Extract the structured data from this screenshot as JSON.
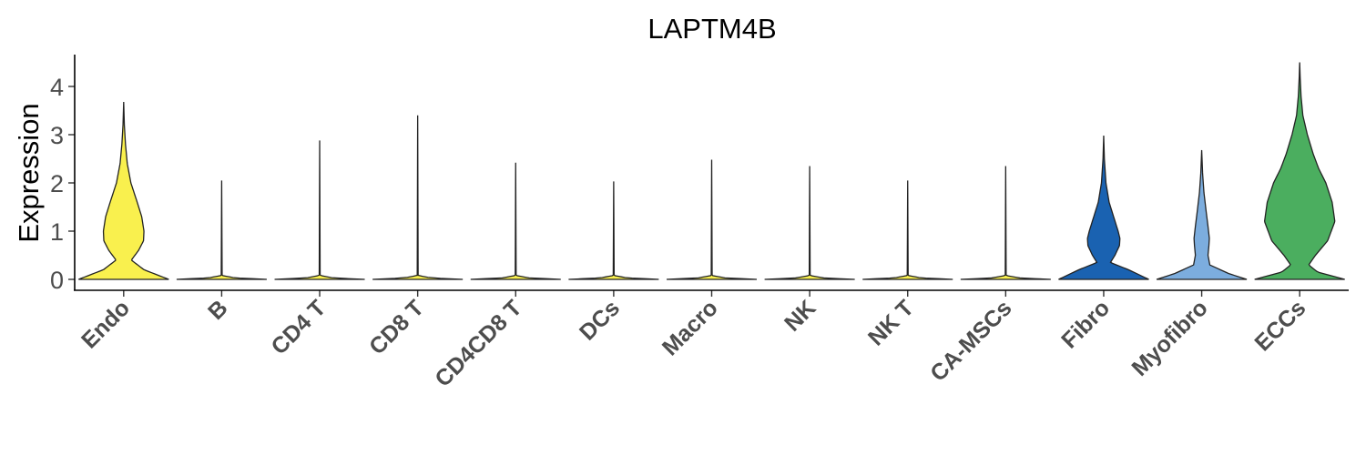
{
  "chart_data": {
    "type": "violin",
    "title": "LAPTM4B",
    "xlabel": "",
    "ylabel": "Expression",
    "ylim": [
      -0.2,
      4.7
    ],
    "yticks": [
      "0",
      "1",
      "2",
      "3",
      "4"
    ],
    "grid": false,
    "legend": "none",
    "categories": [
      "Endo",
      "B",
      "CD4 T",
      "CD8 T",
      "CD4CD8 T",
      "DCs",
      "Macro",
      "NK",
      "NK T",
      "CA-MSCs",
      "Fibro",
      "Myofibro",
      "ECCs"
    ],
    "series": [
      {
        "category": "Endo",
        "color": "#F9F04E",
        "max": 3.68,
        "density": [
          [
            0,
            1.0
          ],
          [
            0.2,
            0.45
          ],
          [
            0.4,
            0.17
          ],
          [
            0.6,
            0.33
          ],
          [
            0.8,
            0.44
          ],
          [
            1.0,
            0.45
          ],
          [
            1.3,
            0.4
          ],
          [
            1.6,
            0.3
          ],
          [
            2.0,
            0.16
          ],
          [
            2.4,
            0.08
          ],
          [
            2.8,
            0.04
          ],
          [
            3.2,
            0.015
          ],
          [
            3.68,
            0
          ]
        ]
      },
      {
        "category": "B",
        "color": "#F9F04E",
        "max": 2.05,
        "density": [
          [
            0,
            1.0
          ],
          [
            0.03,
            0.3
          ],
          [
            0.08,
            0.01
          ],
          [
            2.05,
            0
          ]
        ]
      },
      {
        "category": "CD4 T",
        "color": "#F9F04E",
        "max": 2.88,
        "density": [
          [
            0,
            1.0
          ],
          [
            0.03,
            0.3
          ],
          [
            0.08,
            0.01
          ],
          [
            2.88,
            0
          ]
        ]
      },
      {
        "category": "CD8 T",
        "color": "#F9F04E",
        "max": 3.4,
        "density": [
          [
            0,
            1.0
          ],
          [
            0.03,
            0.3
          ],
          [
            0.08,
            0.01
          ],
          [
            3.4,
            0
          ]
        ]
      },
      {
        "category": "CD4CD8 T",
        "color": "#F9F04E",
        "max": 2.42,
        "density": [
          [
            0,
            1.0
          ],
          [
            0.03,
            0.3
          ],
          [
            0.08,
            0.01
          ],
          [
            2.42,
            0
          ]
        ]
      },
      {
        "category": "DCs",
        "color": "#F9F04E",
        "max": 2.03,
        "density": [
          [
            0,
            1.0
          ],
          [
            0.03,
            0.3
          ],
          [
            0.08,
            0.01
          ],
          [
            2.03,
            0
          ]
        ]
      },
      {
        "category": "Macro",
        "color": "#F9F04E",
        "max": 2.48,
        "density": [
          [
            0,
            1.0
          ],
          [
            0.03,
            0.3
          ],
          [
            0.08,
            0.01
          ],
          [
            2.48,
            0
          ]
        ]
      },
      {
        "category": "NK",
        "color": "#F9F04E",
        "max": 2.35,
        "density": [
          [
            0,
            1.0
          ],
          [
            0.03,
            0.3
          ],
          [
            0.08,
            0.01
          ],
          [
            2.35,
            0
          ]
        ]
      },
      {
        "category": "NK T",
        "color": "#F9F04E",
        "max": 2.05,
        "density": [
          [
            0,
            1.0
          ],
          [
            0.03,
            0.3
          ],
          [
            0.08,
            0.01
          ],
          [
            2.05,
            0
          ]
        ]
      },
      {
        "category": "CA-MSCs",
        "color": "#F9F04E",
        "max": 2.35,
        "density": [
          [
            0,
            1.0
          ],
          [
            0.03,
            0.3
          ],
          [
            0.08,
            0.01
          ],
          [
            2.35,
            0
          ]
        ]
      },
      {
        "category": "Fibro",
        "color": "#1A62B1",
        "max": 2.98,
        "density": [
          [
            0,
            1.0
          ],
          [
            0.2,
            0.55
          ],
          [
            0.35,
            0.15
          ],
          [
            0.5,
            0.25
          ],
          [
            0.7,
            0.35
          ],
          [
            0.85,
            0.36
          ],
          [
            1.0,
            0.32
          ],
          [
            1.3,
            0.22
          ],
          [
            1.6,
            0.12
          ],
          [
            2.0,
            0.05
          ],
          [
            2.5,
            0.015
          ],
          [
            2.98,
            0
          ]
        ]
      },
      {
        "category": "Myofibro",
        "color": "#7CADDE",
        "max": 2.68,
        "density": [
          [
            0,
            1.0
          ],
          [
            0.12,
            0.6
          ],
          [
            0.3,
            0.18
          ],
          [
            0.5,
            0.14
          ],
          [
            0.7,
            0.16
          ],
          [
            0.85,
            0.17
          ],
          [
            1.1,
            0.14
          ],
          [
            1.4,
            0.1
          ],
          [
            1.8,
            0.05
          ],
          [
            2.2,
            0.02
          ],
          [
            2.68,
            0
          ]
        ]
      },
      {
        "category": "ECCs",
        "color": "#4BAE5F",
        "max": 4.5,
        "density": [
          [
            0,
            1.0
          ],
          [
            0.15,
            0.4
          ],
          [
            0.3,
            0.2
          ],
          [
            0.5,
            0.35
          ],
          [
            0.8,
            0.62
          ],
          [
            1.2,
            0.78
          ],
          [
            1.6,
            0.72
          ],
          [
            2.0,
            0.58
          ],
          [
            2.3,
            0.42
          ],
          [
            2.6,
            0.3
          ],
          [
            3.0,
            0.17
          ],
          [
            3.4,
            0.07
          ],
          [
            3.8,
            0.03
          ],
          [
            4.2,
            0.01
          ],
          [
            4.5,
            0
          ]
        ]
      }
    ]
  }
}
